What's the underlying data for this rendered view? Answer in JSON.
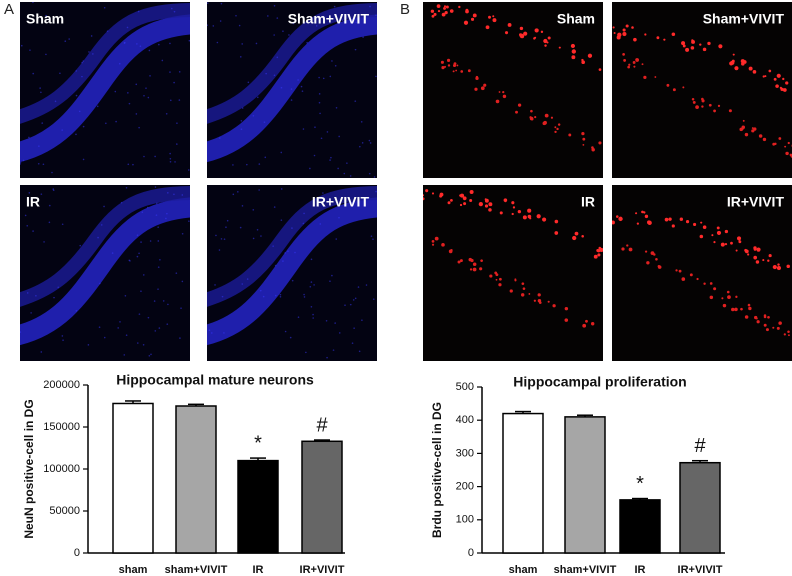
{
  "panels": [
    {
      "label": "A",
      "images": [
        "Sham",
        "Sham+VIVIT",
        "IR",
        "IR+VIVIT"
      ]
    },
    {
      "label": "B",
      "images": [
        "Sham",
        "Sham+VIVIT",
        "IR",
        "IR+VIVIT"
      ]
    }
  ],
  "chart_data": [
    {
      "type": "bar",
      "title": "Hippocampal mature neurons",
      "y_label": "NeuN positive-cell in DG",
      "categories": [
        "sham",
        "sham+VIVIT",
        "IR",
        "IR+VIVIT"
      ],
      "values": [
        178000,
        175000,
        110000,
        133000
      ],
      "errors": [
        3000,
        2000,
        3000,
        1500
      ],
      "colors": [
        "#ffffff",
        "#a6a6a6",
        "#000000",
        "#666666"
      ],
      "ylim": [
        0,
        200000
      ],
      "yticks": [
        0,
        50000,
        100000,
        150000,
        200000
      ],
      "annotations": [
        {
          "text": "*",
          "category": "IR"
        },
        {
          "text": "#",
          "category": "IR+VIVIT"
        }
      ]
    },
    {
      "type": "bar",
      "title": "Hippocampal proliferation",
      "y_label": "Brdu positive-cell in DG",
      "categories": [
        "sham",
        "sham+VIVIT",
        "IR",
        "IR+VIVIT"
      ],
      "values": [
        420,
        410,
        160,
        272
      ],
      "errors": [
        6,
        5,
        4,
        6
      ],
      "colors": [
        "#ffffff",
        "#a6a6a6",
        "#000000",
        "#666666"
      ],
      "ylim": [
        0,
        500
      ],
      "yticks": [
        0,
        100,
        200,
        300,
        400,
        500
      ],
      "annotations": [
        {
          "text": "*",
          "category": "IR"
        },
        {
          "text": "#",
          "category": "IR+VIVIT"
        }
      ]
    }
  ]
}
